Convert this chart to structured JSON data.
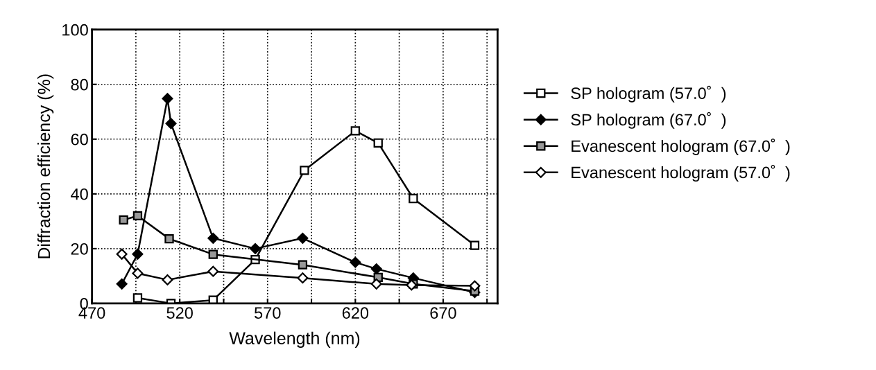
{
  "chart_data": {
    "type": "line",
    "xlabel": "Wavelength (nm)",
    "ylabel": "Diffraction efficiency (%)",
    "xlim": [
      470,
      701
    ],
    "xticks": [
      470,
      {
        "value": 495,
        "label": null
      },
      520,
      {
        "value": 545,
        "label": null
      },
      570,
      {
        "value": 595,
        "label": null
      },
      620,
      {
        "value": 645,
        "label": null
      },
      670,
      {
        "value": 695,
        "label": null
      }
    ],
    "ylim": [
      0,
      100
    ],
    "yticks": [
      0,
      20,
      40,
      60,
      80,
      100
    ],
    "grid": true,
    "legend": "right",
    "line_style": "solid",
    "series": [
      {
        "name": "SP hologram (57.0˚  )",
        "color": "#000000",
        "marker": "square",
        "x": [
          496,
          515,
          539,
          563,
          591,
          620,
          633,
          653,
          688
        ],
        "values": [
          2,
          0,
          1.2,
          16,
          48.6,
          63,
          58.6,
          38.3,
          21.2
        ]
      },
      {
        "name": "SP hologram (67.0˚  )",
        "color": "#000000",
        "marker": "diamond",
        "x": [
          487,
          496,
          513,
          515,
          539,
          563,
          590,
          620,
          632,
          653,
          688
        ],
        "values": [
          7.1,
          18,
          74.8,
          65.7,
          23.8,
          20,
          23.8,
          15,
          12.6,
          9.3,
          4
        ]
      },
      {
        "name": "Evanescent hologram (67.0˚  )",
        "color": "#000000",
        "marker": "square",
        "x": [
          488,
          496,
          514,
          539,
          590,
          633,
          653,
          688
        ],
        "values": [
          30.5,
          32,
          23.6,
          17.9,
          14.1,
          9.5,
          7.1,
          4.5
        ]
      },
      {
        "name": "Evanescent hologram (57.0˚  )",
        "color": "#000000",
        "marker": "diamond",
        "x": [
          487,
          496,
          513,
          539,
          590,
          632,
          652,
          688
        ],
        "values": [
          18,
          11,
          8.6,
          11.7,
          9.3,
          7.1,
          6.7,
          6.4
        ]
      }
    ]
  }
}
